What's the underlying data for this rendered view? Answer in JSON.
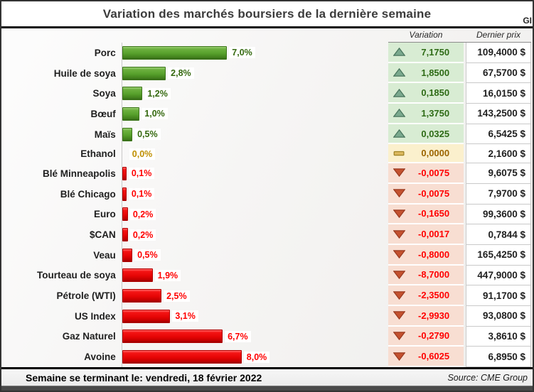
{
  "title": "Variation des marchés boursiers de la dernière semaine",
  "corner_text": "GI",
  "columns": {
    "variation": "Variation",
    "last_price": "Dernier prix"
  },
  "footer": {
    "week_ending": "Semaine se terminant le: vendredi, 18 février 2022",
    "source": "Source: CME Group"
  },
  "colors": {
    "positive_bar": "#57a02b",
    "negative_bar": "#e60505",
    "positive_text": "#2e6b16",
    "negative_text": "#ff0000",
    "neutral_text": "#bf8f00",
    "positive_cell_bg": "#d8ecd3",
    "negative_cell_bg": "#f8ded2",
    "neutral_cell_bg": "#fbf0cd",
    "up_icon": "#7aa98e",
    "down_icon": "#c4512f",
    "flat_icon": "#ddb95f"
  },
  "chart_data": {
    "type": "bar",
    "orientation": "horizontal",
    "title": "Variation des marchés boursiers de la dernière semaine",
    "value_unit": "%",
    "value_range_hint": [
      0,
      8
    ],
    "legend": "none",
    "grid": "off",
    "categories": [
      "Porc",
      "Huile de soya",
      "Soya",
      "Bœuf",
      "Maïs",
      "Ethanol",
      "Blé Minneapolis",
      "Blé Chicago",
      "Euro",
      "$CAN",
      "Veau",
      "Tourteau de soya",
      "Pétrole (WTI)",
      "US Index",
      "Gaz Naturel",
      "Avoine"
    ],
    "values": [
      7.0,
      2.8,
      1.2,
      1.0,
      0.5,
      0.0,
      0.1,
      0.1,
      0.2,
      0.2,
      0.5,
      1.9,
      2.5,
      3.1,
      6.7,
      8.0
    ],
    "rows": [
      {
        "label": "Porc",
        "pct": 7.0,
        "pct_label": "7,0%",
        "direction": "up",
        "variation": "7,1750",
        "last_price": "109,4000 $"
      },
      {
        "label": "Huile de soya",
        "pct": 2.8,
        "pct_label": "2,8%",
        "direction": "up",
        "variation": "1,8500",
        "last_price": "67,5700 $"
      },
      {
        "label": "Soya",
        "pct": 1.2,
        "pct_label": "1,2%",
        "direction": "up",
        "variation": "0,1850",
        "last_price": "16,0150 $"
      },
      {
        "label": "Bœuf",
        "pct": 1.0,
        "pct_label": "1,0%",
        "direction": "up",
        "variation": "1,3750",
        "last_price": "143,2500 $"
      },
      {
        "label": "Maïs",
        "pct": 0.5,
        "pct_label": "0,5%",
        "direction": "up",
        "variation": "0,0325",
        "last_price": "6,5425 $"
      },
      {
        "label": "Ethanol",
        "pct": 0.0,
        "pct_label": "0,0%",
        "direction": "flat",
        "variation": "0,0000",
        "last_price": "2,1600 $"
      },
      {
        "label": "Blé Minneapolis",
        "pct": 0.1,
        "pct_label": "0,1%",
        "direction": "down",
        "variation": "-0,0075",
        "last_price": "9,6075 $"
      },
      {
        "label": "Blé Chicago",
        "pct": 0.1,
        "pct_label": "0,1%",
        "direction": "down",
        "variation": "-0,0075",
        "last_price": "7,9700 $"
      },
      {
        "label": "Euro",
        "pct": 0.2,
        "pct_label": "0,2%",
        "direction": "down",
        "variation": "-0,1650",
        "last_price": "99,3600 $"
      },
      {
        "label": "$CAN",
        "pct": 0.2,
        "pct_label": "0,2%",
        "direction": "down",
        "variation": "-0,0017",
        "last_price": "0,7844 $"
      },
      {
        "label": "Veau",
        "pct": 0.5,
        "pct_label": "0,5%",
        "direction": "down",
        "variation": "-0,8000",
        "last_price": "165,4250 $"
      },
      {
        "label": "Tourteau de soya",
        "pct": 1.9,
        "pct_label": "1,9%",
        "direction": "down",
        "variation": "-8,7000",
        "last_price": "447,9000 $"
      },
      {
        "label": "Pétrole (WTI)",
        "pct": 2.5,
        "pct_label": "2,5%",
        "direction": "down",
        "variation": "-2,3500",
        "last_price": "91,1700 $"
      },
      {
        "label": "US Index",
        "pct": 3.1,
        "pct_label": "3,1%",
        "direction": "down",
        "variation": "-2,9930",
        "last_price": "93,0800 $"
      },
      {
        "label": "Gaz Naturel",
        "pct": 6.7,
        "pct_label": "6,7%",
        "direction": "down",
        "variation": "-0,2790",
        "last_price": "3,8610 $"
      },
      {
        "label": "Avoine",
        "pct": 8.0,
        "pct_label": "8,0%",
        "direction": "down",
        "variation": "-0,6025",
        "last_price": "6,8950 $"
      }
    ]
  }
}
